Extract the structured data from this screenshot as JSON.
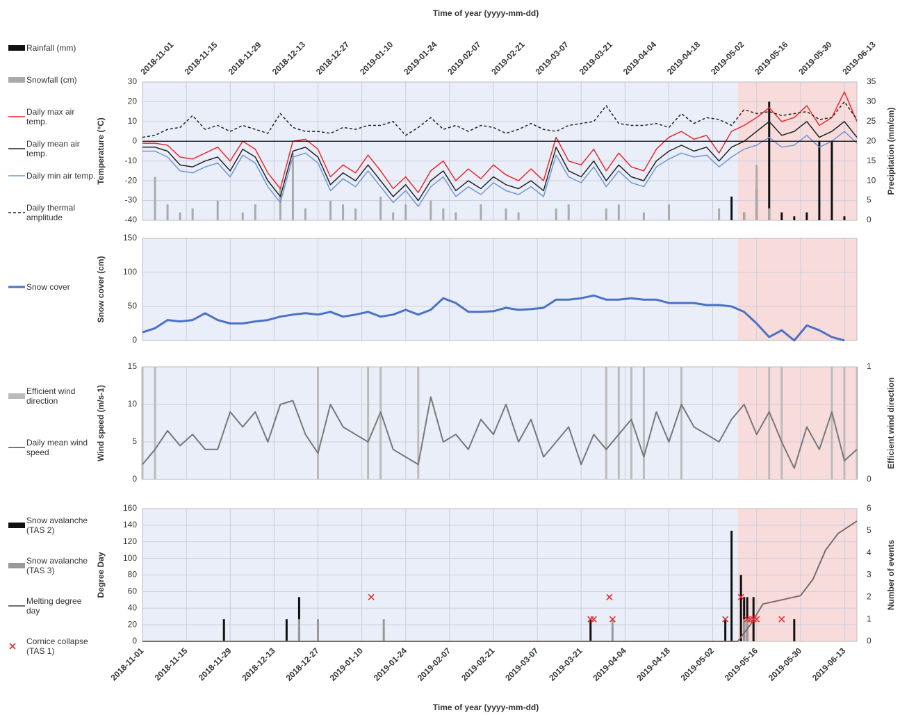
{
  "chart_data": [
    {
      "type": "line",
      "x_title": "Time of year (yyyy-mm-dd)",
      "xtick_side": "top",
      "ylabel": "Temperature (°C)",
      "y2label": "Precipitation (mm/cm)",
      "xlim": [
        "2018-11-01",
        "2019-06-17"
      ],
      "xticks": [
        "2018-11-01",
        "2018-11-15",
        "2018-11-29",
        "2018-12-13",
        "2018-12-27",
        "2019-01-10",
        "2019-01-24",
        "2019-02-07",
        "2019-02-21",
        "2019-03-07",
        "2019-03-21",
        "2019-04-04",
        "2019-04-18",
        "2019-05-02",
        "2019-05-16",
        "2019-05-30",
        "2019-06-13"
      ],
      "ylim": [
        -40,
        30
      ],
      "yticks": [
        -40,
        -30,
        -20,
        -10,
        0,
        10,
        20,
        30
      ],
      "y2lim": [
        0,
        35
      ],
      "y2ticks": [
        0,
        5,
        10,
        15,
        20,
        25,
        30,
        35
      ],
      "grid": true,
      "zero_line": true,
      "shading": [
        {
          "from": "2018-11-01",
          "to": "2019-05-10",
          "color": "#e9eef8"
        },
        {
          "from": "2019-05-10",
          "to": "2019-06-17",
          "color": "#f8dcdc"
        }
      ],
      "x": [
        "2018-11-01",
        "2018-11-05",
        "2018-11-09",
        "2018-11-13",
        "2018-11-17",
        "2018-11-21",
        "2018-11-25",
        "2018-11-29",
        "2018-12-03",
        "2018-12-07",
        "2018-12-11",
        "2018-12-15",
        "2018-12-19",
        "2018-12-23",
        "2018-12-27",
        "2018-12-31",
        "2019-01-04",
        "2019-01-08",
        "2019-01-12",
        "2019-01-16",
        "2019-01-20",
        "2019-01-24",
        "2019-01-28",
        "2019-02-01",
        "2019-02-05",
        "2019-02-09",
        "2019-02-13",
        "2019-02-17",
        "2019-02-21",
        "2019-02-25",
        "2019-03-01",
        "2019-03-05",
        "2019-03-09",
        "2019-03-13",
        "2019-03-17",
        "2019-03-21",
        "2019-03-25",
        "2019-03-29",
        "2019-04-02",
        "2019-04-06",
        "2019-04-10",
        "2019-04-14",
        "2019-04-18",
        "2019-04-22",
        "2019-04-26",
        "2019-04-30",
        "2019-05-04",
        "2019-05-08",
        "2019-05-12",
        "2019-05-16",
        "2019-05-20",
        "2019-05-24",
        "2019-05-28",
        "2019-06-01",
        "2019-06-05",
        "2019-06-09",
        "2019-06-13",
        "2019-06-17"
      ],
      "series": [
        {
          "name": "Rainfall (mm)",
          "type": "bar",
          "axis": "y2",
          "color": "#111111",
          "values": [
            0,
            0,
            0,
            0,
            0,
            0,
            0,
            0,
            0,
            0,
            0,
            0,
            0,
            0,
            0,
            0,
            0,
            0,
            0,
            0,
            0,
            0,
            0,
            0,
            0,
            0,
            0,
            0,
            0,
            0,
            0,
            0,
            0,
            0,
            0,
            0,
            0,
            0,
            0,
            0,
            0,
            0,
            0,
            0,
            0,
            0,
            0,
            6,
            2,
            8,
            30,
            2,
            1,
            2,
            20,
            20,
            1,
            0
          ]
        },
        {
          "name": "Snowfall (cm)",
          "type": "bar",
          "axis": "y2",
          "color": "#aaaaaa",
          "values": [
            0,
            11,
            4,
            2,
            3,
            0,
            5,
            0,
            2,
            4,
            0,
            8,
            17,
            3,
            0,
            5,
            4,
            3,
            0,
            6,
            2,
            4,
            0,
            5,
            3,
            2,
            0,
            4,
            0,
            3,
            2,
            0,
            0,
            3,
            4,
            0,
            0,
            3,
            4,
            0,
            2,
            0,
            4,
            0,
            0,
            0,
            3,
            0,
            2,
            14,
            3,
            0,
            0,
            0,
            0,
            0,
            0,
            0
          ]
        },
        {
          "name": "Daily max air temp.",
          "type": "line",
          "color": "#e8292b",
          "values": [
            -1,
            -1,
            -2,
            -8,
            -9,
            -6,
            -3,
            -10,
            0,
            -4,
            -16,
            -24,
            0,
            1,
            -4,
            -18,
            -12,
            -16,
            -7,
            -15,
            -24,
            -18,
            -26,
            -15,
            -10,
            -20,
            -14,
            -19,
            -12,
            -17,
            -20,
            -14,
            -20,
            2,
            -10,
            -12,
            -4,
            -15,
            -6,
            -13,
            -15,
            -4,
            2,
            5,
            1,
            3,
            -6,
            5,
            8,
            12,
            17,
            10,
            12,
            18,
            8,
            12,
            25,
            10
          ]
        },
        {
          "name": "Daily mean air temp.",
          "type": "line",
          "color": "#222222",
          "values": [
            -3,
            -3,
            -5,
            -12,
            -13,
            -10,
            -8,
            -15,
            -4,
            -8,
            -20,
            -28,
            -5,
            -3,
            -8,
            -22,
            -16,
            -20,
            -12,
            -20,
            -28,
            -22,
            -30,
            -20,
            -15,
            -25,
            -20,
            -24,
            -18,
            -22,
            -24,
            -20,
            -25,
            -3,
            -15,
            -18,
            -10,
            -20,
            -12,
            -18,
            -20,
            -10,
            -5,
            -2,
            -5,
            -3,
            -10,
            -3,
            0,
            5,
            10,
            3,
            5,
            10,
            2,
            5,
            10,
            2
          ]
        },
        {
          "name": "Daily min air temp.",
          "type": "line",
          "color": "#6f95d6",
          "values": [
            -5,
            -5,
            -8,
            -15,
            -16,
            -13,
            -11,
            -18,
            -7,
            -11,
            -23,
            -31,
            -8,
            -6,
            -11,
            -25,
            -19,
            -23,
            -15,
            -23,
            -31,
            -25,
            -33,
            -23,
            -18,
            -28,
            -23,
            -27,
            -21,
            -25,
            -27,
            -23,
            -28,
            -7,
            -18,
            -21,
            -13,
            -23,
            -15,
            -21,
            -23,
            -13,
            -9,
            -6,
            -8,
            -7,
            -13,
            -8,
            -4,
            -2,
            2,
            -3,
            -2,
            3,
            -3,
            0,
            5,
            -1
          ]
        },
        {
          "name": "Daily thermal amplitude",
          "type": "line",
          "dash": true,
          "color": "#222222",
          "values": [
            2,
            3,
            6,
            7,
            13,
            6,
            8,
            5,
            8,
            6,
            4,
            14,
            7,
            5,
            5,
            4,
            7,
            6,
            8,
            8,
            10,
            3,
            7,
            12,
            6,
            8,
            5,
            8,
            7,
            4,
            6,
            9,
            6,
            5,
            8,
            9,
            10,
            18,
            9,
            8,
            8,
            9,
            7,
            14,
            9,
            12,
            11,
            8,
            16,
            14,
            15,
            13,
            14,
            15,
            11,
            12,
            20,
            11
          ]
        }
      ]
    },
    {
      "type": "line",
      "ylabel": "Snow cover (cm)",
      "xlim": [
        "2018-11-01",
        "2019-06-17"
      ],
      "ylim": [
        0,
        150
      ],
      "yticks": [
        0,
        50,
        100,
        150
      ],
      "grid": true,
      "shading": [
        {
          "from": "2018-11-01",
          "to": "2019-05-10",
          "color": "#e9eef8"
        },
        {
          "from": "2019-05-10",
          "to": "2019-06-17",
          "color": "#f8dcdc"
        }
      ],
      "x": [
        "2018-11-01",
        "2018-11-05",
        "2018-11-09",
        "2018-11-13",
        "2018-11-17",
        "2018-11-21",
        "2018-11-25",
        "2018-11-29",
        "2018-12-03",
        "2018-12-07",
        "2018-12-11",
        "2018-12-15",
        "2018-12-19",
        "2018-12-23",
        "2018-12-27",
        "2018-12-31",
        "2019-01-04",
        "2019-01-08",
        "2019-01-12",
        "2019-01-16",
        "2019-01-20",
        "2019-01-24",
        "2019-01-28",
        "2019-02-01",
        "2019-02-05",
        "2019-02-09",
        "2019-02-13",
        "2019-02-17",
        "2019-02-21",
        "2019-02-25",
        "2019-03-01",
        "2019-03-05",
        "2019-03-09",
        "2019-03-13",
        "2019-03-17",
        "2019-03-21",
        "2019-03-25",
        "2019-03-29",
        "2019-04-02",
        "2019-04-06",
        "2019-04-10",
        "2019-04-14",
        "2019-04-18",
        "2019-04-22",
        "2019-04-26",
        "2019-04-30",
        "2019-05-04",
        "2019-05-08",
        "2019-05-12",
        "2019-05-16",
        "2019-05-20",
        "2019-05-24",
        "2019-05-28",
        "2019-06-01",
        "2019-06-05",
        "2019-06-09",
        "2019-06-13",
        "2019-06-17"
      ],
      "series": [
        {
          "name": "Snow cover",
          "type": "line",
          "width": 3,
          "color": "#4a72c4",
          "values": [
            12,
            18,
            30,
            28,
            30,
            40,
            30,
            25,
            25,
            28,
            30,
            35,
            38,
            40,
            38,
            42,
            35,
            38,
            42,
            35,
            38,
            45,
            38,
            45,
            62,
            55,
            42,
            42,
            43,
            48,
            45,
            46,
            48,
            60,
            60,
            62,
            66,
            60,
            60,
            62,
            60,
            60,
            55,
            55,
            55,
            52,
            52,
            50,
            42,
            25,
            5,
            15,
            0,
            22,
            15,
            5,
            0,
            null
          ]
        }
      ]
    },
    {
      "type": "line",
      "ylabel": "Wind speed (m/s-1)",
      "y2label": "Efficient wind direction",
      "xlim": [
        "2018-11-01",
        "2019-06-17"
      ],
      "ylim": [
        0,
        15
      ],
      "yticks": [
        0,
        5,
        10,
        15
      ],
      "y2lim": [
        0,
        1
      ],
      "y2ticks": [
        0,
        1
      ],
      "grid": true,
      "shading": [
        {
          "from": "2018-11-01",
          "to": "2019-05-10",
          "color": "#e9eef8"
        },
        {
          "from": "2019-05-10",
          "to": "2019-06-17",
          "color": "#f8dcdc"
        }
      ],
      "x": [
        "2018-11-01",
        "2018-11-05",
        "2018-11-09",
        "2018-11-13",
        "2018-11-17",
        "2018-11-21",
        "2018-11-25",
        "2018-11-29",
        "2018-12-03",
        "2018-12-07",
        "2018-12-11",
        "2018-12-15",
        "2018-12-19",
        "2018-12-23",
        "2018-12-27",
        "2018-12-31",
        "2019-01-04",
        "2019-01-08",
        "2019-01-12",
        "2019-01-16",
        "2019-01-20",
        "2019-01-24",
        "2019-01-28",
        "2019-02-01",
        "2019-02-05",
        "2019-02-09",
        "2019-02-13",
        "2019-02-17",
        "2019-02-21",
        "2019-02-25",
        "2019-03-01",
        "2019-03-05",
        "2019-03-09",
        "2019-03-13",
        "2019-03-17",
        "2019-03-21",
        "2019-03-25",
        "2019-03-29",
        "2019-04-02",
        "2019-04-06",
        "2019-04-10",
        "2019-04-14",
        "2019-04-18",
        "2019-04-22",
        "2019-04-26",
        "2019-04-30",
        "2019-05-04",
        "2019-05-08",
        "2019-05-12",
        "2019-05-16",
        "2019-05-20",
        "2019-05-24",
        "2019-05-28",
        "2019-06-01",
        "2019-06-05",
        "2019-06-09",
        "2019-06-13",
        "2019-06-17"
      ],
      "series": [
        {
          "name": "Efficient wind direction",
          "type": "bar",
          "axis": "y2",
          "color": "#bbbbbb",
          "values": [
            1,
            1,
            0,
            0,
            0,
            0,
            0,
            0,
            0,
            0,
            0,
            0,
            0,
            0,
            1,
            0,
            0,
            0,
            1,
            1,
            0,
            0,
            1,
            0,
            0,
            0,
            0,
            0,
            0,
            0,
            0,
            0,
            0,
            0,
            0,
            0,
            0,
            1,
            1,
            1,
            1,
            0,
            0,
            1,
            0,
            0,
            0,
            0,
            0,
            0,
            1,
            1,
            0,
            0,
            0,
            1,
            1,
            1
          ]
        },
        {
          "name": "Daily mean wind speed",
          "type": "line",
          "width": 2,
          "color": "#777777",
          "values": [
            2,
            4,
            6.5,
            4.5,
            6,
            4,
            4,
            9,
            7,
            9,
            5,
            10,
            10.5,
            6,
            3.5,
            10,
            7,
            6,
            5,
            9,
            4,
            3,
            2,
            11,
            5,
            6,
            4,
            8,
            6,
            10,
            5,
            8,
            3,
            5,
            7,
            2,
            6,
            4,
            6,
            8,
            3,
            9,
            5,
            10,
            7,
            6,
            5,
            8,
            10,
            6,
            9,
            5,
            1.5,
            7,
            4,
            9,
            2.5,
            4
          ]
        }
      ]
    },
    {
      "type": "line",
      "x_title": "Time of year (yyyy-mm-dd)",
      "xtick_side": "bottom",
      "ylabel": "Degree Day",
      "y2label": "Number of events",
      "xlim": [
        "2018-11-01",
        "2019-06-17"
      ],
      "xticks": [
        "2018-11-01",
        "2018-11-15",
        "2018-11-29",
        "2018-12-13",
        "2018-12-27",
        "2019-01-10",
        "2019-01-24",
        "2019-02-07",
        "2019-02-21",
        "2019-03-07",
        "2019-03-21",
        "2019-04-04",
        "2019-04-18",
        "2019-05-02",
        "2019-05-16",
        "2019-05-30",
        "2019-06-13"
      ],
      "ylim": [
        0,
        160
      ],
      "yticks": [
        0,
        20,
        40,
        60,
        80,
        100,
        120,
        140,
        160
      ],
      "y2lim": [
        0,
        6
      ],
      "y2ticks": [
        0,
        1,
        2,
        3,
        4,
        5,
        6
      ],
      "grid": true,
      "shading": [
        {
          "from": "2018-11-01",
          "to": "2019-05-10",
          "color": "#e9eef8"
        },
        {
          "from": "2019-05-10",
          "to": "2019-06-17",
          "color": "#f8dcdc"
        }
      ],
      "series": [
        {
          "name": "Snow avalanche (TAS 2)",
          "type": "bar",
          "axis": "y2",
          "color": "#111111",
          "x": [
            "2018-11-27",
            "2018-12-17",
            "2018-12-21",
            "2019-03-24",
            "2019-05-06",
            "2019-05-08",
            "2019-05-11",
            "2019-05-12",
            "2019-05-13",
            "2019-05-15",
            "2019-05-28"
          ],
          "values": [
            1,
            1,
            2,
            1,
            1,
            5,
            3,
            2,
            2,
            2,
            1
          ]
        },
        {
          "name": "Snow avalanche (TAS 3)",
          "type": "bar",
          "axis": "y2",
          "color": "#999999",
          "x": [
            "2018-12-21",
            "2018-12-27",
            "2019-01-17",
            "2019-03-31",
            "2019-05-12",
            "2019-05-13"
          ],
          "values": [
            1,
            1,
            1,
            1,
            1,
            1
          ]
        },
        {
          "name": "Melting degree day",
          "type": "line",
          "width": 2,
          "color": "#7a6a6a",
          "x": [
            "2018-11-01",
            "2019-05-10",
            "2019-05-14",
            "2019-05-18",
            "2019-05-24",
            "2019-05-30",
            "2019-06-03",
            "2019-06-07",
            "2019-06-11",
            "2019-06-17"
          ],
          "values": [
            0,
            0,
            20,
            45,
            50,
            55,
            75,
            110,
            130,
            145
          ]
        },
        {
          "name": "Cornice collapse (TAS 1)",
          "type": "marker",
          "axis": "y2",
          "color": "#e8292b",
          "x": [
            "2019-01-13",
            "2019-03-24",
            "2019-03-25",
            "2019-03-30",
            "2019-03-31",
            "2019-05-06",
            "2019-05-11",
            "2019-05-13",
            "2019-05-14",
            "2019-05-15",
            "2019-05-16",
            "2019-05-24"
          ],
          "values": [
            2,
            1,
            1,
            2,
            1,
            1,
            2,
            1,
            1,
            1,
            1,
            1
          ]
        }
      ]
    }
  ]
}
